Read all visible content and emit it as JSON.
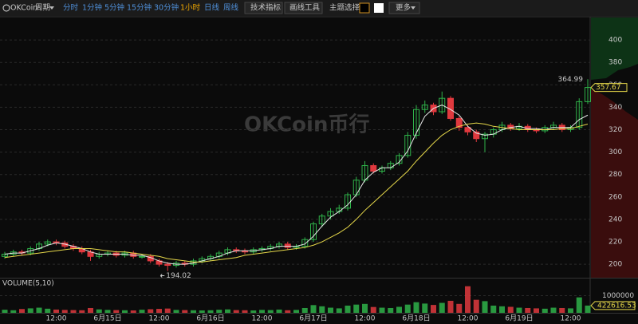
{
  "toolbar": {
    "logo": "OKCoin",
    "period": "周期",
    "periods": [
      "分时",
      "1分钟",
      "5分钟",
      "15分钟",
      "30分钟",
      "1小时",
      "日线",
      "周线"
    ],
    "tools": [
      "技术指标",
      "画线工具",
      "主题选择"
    ],
    "more": "更多"
  },
  "chart_data": {
    "type": "candlestick",
    "watermark": "OKCoin币行",
    "volume_title": "VOLUME(5,10)",
    "categories": [
      null,
      null,
      null,
      null,
      null,
      null,
      "12:00",
      null,
      null,
      null,
      null,
      null,
      "6月15日",
      null,
      null,
      null,
      null,
      null,
      "12:00",
      null,
      null,
      null,
      null,
      null,
      "6月16日",
      null,
      null,
      null,
      null,
      null,
      "12:00",
      null,
      null,
      null,
      null,
      null,
      "6月17日",
      null,
      null,
      null,
      null,
      null,
      "12:00",
      null,
      null,
      null,
      null,
      null,
      "6月18日",
      null,
      null,
      null,
      null,
      null,
      "12:00",
      null,
      null,
      null,
      null,
      null,
      "6月19日",
      null,
      null,
      null,
      null,
      null,
      "12:00",
      null,
      null
    ],
    "open": [
      207,
      209,
      211,
      210,
      214,
      218,
      220,
      219,
      216,
      214,
      211,
      207,
      209,
      210,
      208,
      210,
      207,
      207,
      203,
      200,
      199,
      201,
      200,
      203,
      205,
      207,
      210,
      213,
      212,
      211,
      213,
      214,
      216,
      218,
      215,
      216,
      222,
      236,
      243,
      247,
      250,
      262,
      275,
      288,
      283,
      286,
      290,
      297,
      315,
      338,
      342,
      336,
      348,
      330,
      322,
      318,
      312,
      316,
      320,
      324,
      321,
      323,
      320,
      319,
      322,
      324,
      320,
      322,
      345
    ],
    "high": [
      211,
      213,
      213,
      216,
      220,
      222,
      222,
      221,
      218,
      216,
      213,
      211,
      212,
      212,
      212,
      212,
      209,
      209,
      205,
      202,
      203,
      203,
      205,
      207,
      209,
      212,
      215,
      215,
      214,
      215,
      216,
      218,
      220,
      220,
      218,
      224,
      238,
      245,
      250,
      253,
      264,
      278,
      292,
      290,
      288,
      292,
      299,
      318,
      342,
      346,
      344,
      354,
      350,
      332,
      324,
      320,
      318,
      322,
      327,
      326,
      326,
      325,
      322,
      324,
      327,
      326,
      324,
      348,
      364.99
    ],
    "low": [
      205,
      207,
      208,
      208,
      212,
      216,
      217,
      214,
      212,
      209,
      203,
      205,
      207,
      206,
      206,
      205,
      205,
      201,
      198,
      194.02,
      197,
      198,
      198,
      201,
      203,
      205,
      208,
      210,
      209,
      209,
      211,
      212,
      214,
      213,
      213,
      214,
      220,
      233,
      240,
      245,
      248,
      260,
      273,
      281,
      281,
      284,
      288,
      295,
      312,
      335,
      333,
      334,
      328,
      319,
      315,
      309,
      300,
      313,
      318,
      319,
      319,
      318,
      317,
      317,
      320,
      318,
      318,
      320,
      343
    ],
    "close": [
      209,
      211,
      210,
      214,
      218,
      220,
      219,
      216,
      214,
      211,
      207,
      209,
      210,
      208,
      210,
      207,
      207,
      203,
      200,
      199,
      201,
      200,
      203,
      205,
      207,
      210,
      213,
      212,
      211,
      213,
      214,
      216,
      218,
      215,
      216,
      222,
      236,
      243,
      247,
      250,
      262,
      275,
      288,
      283,
      286,
      290,
      297,
      315,
      338,
      342,
      336,
      348,
      330,
      322,
      318,
      312,
      316,
      320,
      324,
      321,
      323,
      320,
      319,
      322,
      324,
      320,
      322,
      345,
      357.67
    ],
    "volume": [
      180000,
      150000,
      220000,
      260000,
      300000,
      240000,
      190000,
      170000,
      160000,
      150000,
      280000,
      200000,
      170000,
      160000,
      150000,
      140000,
      180000,
      210000,
      230000,
      250000,
      170000,
      160000,
      150000,
      140000,
      150000,
      180000,
      200000,
      160000,
      150000,
      140000,
      170000,
      160000,
      190000,
      150000,
      170000,
      280000,
      450000,
      380000,
      300000,
      260000,
      420000,
      480000,
      520000,
      340000,
      300000,
      280000,
      350000,
      480000,
      620000,
      540000,
      460000,
      580000,
      700000,
      520000,
      1550000,
      760000,
      680000,
      420000,
      380000,
      350000,
      300000,
      280000,
      260000,
      240000,
      300000,
      280000,
      260000,
      900000,
      422616.53
    ],
    "lines": [
      {
        "color": "#e8e8e8",
        "values": [
          209,
          210,
          210,
          212,
          214,
          217,
          219,
          218,
          216,
          214,
          211,
          209,
          209,
          209,
          209,
          208,
          208,
          206,
          203,
          201,
          200,
          200,
          201,
          203,
          205,
          207,
          210,
          212,
          212,
          212,
          213,
          214,
          216,
          216,
          216,
          218,
          225,
          234,
          242,
          247,
          253,
          262,
          275,
          282,
          286,
          286,
          291,
          301,
          317,
          332,
          339,
          342,
          338,
          333,
          323,
          317,
          315,
          316,
          320,
          322,
          323,
          321,
          321,
          320,
          322,
          322,
          322,
          329,
          333
        ]
      },
      {
        "color": "#e6d84a",
        "values": [
          206,
          207,
          208,
          209,
          210,
          211,
          212,
          213,
          214,
          214,
          214,
          213,
          212,
          211,
          211,
          210,
          209,
          208,
          207,
          205,
          204,
          203,
          202,
          202,
          203,
          204,
          205,
          206,
          208,
          209,
          210,
          211,
          212,
          213,
          214,
          215,
          217,
          220,
          224,
          228,
          233,
          240,
          248,
          255,
          262,
          269,
          276,
          283,
          292,
          300,
          308,
          315,
          320,
          323,
          325,
          326,
          325,
          323,
          322,
          321,
          320,
          320,
          320,
          320,
          320,
          321,
          321,
          323,
          325
        ]
      }
    ],
    "up_color": "#2fb34a",
    "down_color": "#e0393e",
    "ylim": [
      188,
      420
    ],
    "yticks": [
      200,
      220,
      240,
      260,
      280,
      300,
      320,
      340,
      360,
      380,
      400
    ],
    "vlim": [
      0,
      2000000
    ],
    "vticks": [
      1000000
    ],
    "grid": true
  }
}
